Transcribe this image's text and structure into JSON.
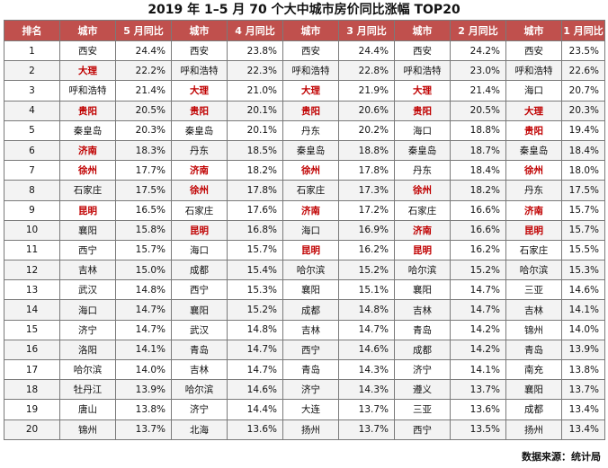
{
  "title": "2019 年 1–5 月 70 个大中城市房价同比涨幅 TOP20",
  "headers": [
    "排名",
    "城市",
    "5 月同比",
    "城市",
    "4 月同比",
    "城市",
    "3 月同比",
    "城市",
    "2 月同比",
    "城市",
    "1 月同比"
  ],
  "highlight_color": "#c00000",
  "header_color": "#c0504d",
  "rows": [
    {
      "rank": "1",
      "m5": {
        "city": "西安",
        "pct": "24.4%",
        "hl": false
      },
      "m4": {
        "city": "西安",
        "pct": "23.8%",
        "hl": false
      },
      "m3": {
        "city": "西安",
        "pct": "24.4%",
        "hl": false
      },
      "m2": {
        "city": "西安",
        "pct": "24.2%",
        "hl": false
      },
      "m1": {
        "city": "西安",
        "pct": "23.5%",
        "hl": false
      }
    },
    {
      "rank": "2",
      "m5": {
        "city": "大理",
        "pct": "22.2%",
        "hl": true
      },
      "m4": {
        "city": "呼和浩特",
        "pct": "22.3%",
        "hl": false
      },
      "m3": {
        "city": "呼和浩特",
        "pct": "22.8%",
        "hl": false
      },
      "m2": {
        "city": "呼和浩特",
        "pct": "23.0%",
        "hl": false
      },
      "m1": {
        "city": "呼和浩特",
        "pct": "22.6%",
        "hl": false
      }
    },
    {
      "rank": "3",
      "m5": {
        "city": "呼和浩特",
        "pct": "21.4%",
        "hl": false
      },
      "m4": {
        "city": "大理",
        "pct": "21.0%",
        "hl": true
      },
      "m3": {
        "city": "大理",
        "pct": "21.9%",
        "hl": true
      },
      "m2": {
        "city": "大理",
        "pct": "21.4%",
        "hl": true
      },
      "m1": {
        "city": "海口",
        "pct": "20.7%",
        "hl": false
      }
    },
    {
      "rank": "4",
      "m5": {
        "city": "贵阳",
        "pct": "20.5%",
        "hl": true
      },
      "m4": {
        "city": "贵阳",
        "pct": "20.1%",
        "hl": true
      },
      "m3": {
        "city": "贵阳",
        "pct": "20.6%",
        "hl": true
      },
      "m2": {
        "city": "贵阳",
        "pct": "20.5%",
        "hl": true
      },
      "m1": {
        "city": "大理",
        "pct": "20.3%",
        "hl": true
      }
    },
    {
      "rank": "5",
      "m5": {
        "city": "秦皇岛",
        "pct": "20.3%",
        "hl": false
      },
      "m4": {
        "city": "秦皇岛",
        "pct": "20.1%",
        "hl": false
      },
      "m3": {
        "city": "丹东",
        "pct": "20.2%",
        "hl": false
      },
      "m2": {
        "city": "海口",
        "pct": "18.8%",
        "hl": false
      },
      "m1": {
        "city": "贵阳",
        "pct": "19.4%",
        "hl": true
      }
    },
    {
      "rank": "6",
      "m5": {
        "city": "济南",
        "pct": "18.3%",
        "hl": true
      },
      "m4": {
        "city": "丹东",
        "pct": "18.5%",
        "hl": false
      },
      "m3": {
        "city": "秦皇岛",
        "pct": "18.8%",
        "hl": false
      },
      "m2": {
        "city": "秦皇岛",
        "pct": "18.7%",
        "hl": false
      },
      "m1": {
        "city": "秦皇岛",
        "pct": "18.4%",
        "hl": false
      }
    },
    {
      "rank": "7",
      "m5": {
        "city": "徐州",
        "pct": "17.7%",
        "hl": true
      },
      "m4": {
        "city": "济南",
        "pct": "18.2%",
        "hl": true
      },
      "m3": {
        "city": "徐州",
        "pct": "17.8%",
        "hl": true
      },
      "m2": {
        "city": "丹东",
        "pct": "18.4%",
        "hl": false
      },
      "m1": {
        "city": "徐州",
        "pct": "18.0%",
        "hl": true
      }
    },
    {
      "rank": "8",
      "m5": {
        "city": "石家庄",
        "pct": "17.5%",
        "hl": false
      },
      "m4": {
        "city": "徐州",
        "pct": "17.8%",
        "hl": true
      },
      "m3": {
        "city": "石家庄",
        "pct": "17.3%",
        "hl": false
      },
      "m2": {
        "city": "徐州",
        "pct": "18.2%",
        "hl": true
      },
      "m1": {
        "city": "丹东",
        "pct": "17.5%",
        "hl": false
      }
    },
    {
      "rank": "9",
      "m5": {
        "city": "昆明",
        "pct": "16.5%",
        "hl": true
      },
      "m4": {
        "city": "石家庄",
        "pct": "17.6%",
        "hl": false
      },
      "m3": {
        "city": "济南",
        "pct": "17.2%",
        "hl": true
      },
      "m2": {
        "city": "石家庄",
        "pct": "16.6%",
        "hl": false
      },
      "m1": {
        "city": "济南",
        "pct": "15.7%",
        "hl": true
      }
    },
    {
      "rank": "10",
      "m5": {
        "city": "襄阳",
        "pct": "15.8%",
        "hl": false
      },
      "m4": {
        "city": "昆明",
        "pct": "16.8%",
        "hl": true
      },
      "m3": {
        "city": "海口",
        "pct": "16.9%",
        "hl": false
      },
      "m2": {
        "city": "济南",
        "pct": "16.6%",
        "hl": true
      },
      "m1": {
        "city": "昆明",
        "pct": "15.7%",
        "hl": true
      }
    },
    {
      "rank": "11",
      "m5": {
        "city": "西宁",
        "pct": "15.7%",
        "hl": false
      },
      "m4": {
        "city": "海口",
        "pct": "15.7%",
        "hl": false
      },
      "m3": {
        "city": "昆明",
        "pct": "16.2%",
        "hl": true
      },
      "m2": {
        "city": "昆明",
        "pct": "16.2%",
        "hl": true
      },
      "m1": {
        "city": "石家庄",
        "pct": "15.5%",
        "hl": false
      }
    },
    {
      "rank": "12",
      "m5": {
        "city": "吉林",
        "pct": "15.0%",
        "hl": false
      },
      "m4": {
        "city": "成都",
        "pct": "15.4%",
        "hl": false
      },
      "m3": {
        "city": "哈尔滨",
        "pct": "15.2%",
        "hl": false
      },
      "m2": {
        "city": "哈尔滨",
        "pct": "15.2%",
        "hl": false
      },
      "m1": {
        "city": "哈尔滨",
        "pct": "15.3%",
        "hl": false
      }
    },
    {
      "rank": "13",
      "m5": {
        "city": "武汉",
        "pct": "14.8%",
        "hl": false
      },
      "m4": {
        "city": "西宁",
        "pct": "15.3%",
        "hl": false
      },
      "m3": {
        "city": "襄阳",
        "pct": "15.1%",
        "hl": false
      },
      "m2": {
        "city": "襄阳",
        "pct": "14.7%",
        "hl": false
      },
      "m1": {
        "city": "三亚",
        "pct": "14.6%",
        "hl": false
      }
    },
    {
      "rank": "14",
      "m5": {
        "city": "海口",
        "pct": "14.7%",
        "hl": false
      },
      "m4": {
        "city": "襄阳",
        "pct": "15.2%",
        "hl": false
      },
      "m3": {
        "city": "成都",
        "pct": "14.8%",
        "hl": false
      },
      "m2": {
        "city": "吉林",
        "pct": "14.7%",
        "hl": false
      },
      "m1": {
        "city": "吉林",
        "pct": "14.1%",
        "hl": false
      }
    },
    {
      "rank": "15",
      "m5": {
        "city": "济宁",
        "pct": "14.7%",
        "hl": false
      },
      "m4": {
        "city": "武汉",
        "pct": "14.8%",
        "hl": false
      },
      "m3": {
        "city": "吉林",
        "pct": "14.7%",
        "hl": false
      },
      "m2": {
        "city": "青岛",
        "pct": "14.2%",
        "hl": false
      },
      "m1": {
        "city": "锦州",
        "pct": "14.0%",
        "hl": false
      }
    },
    {
      "rank": "16",
      "m5": {
        "city": "洛阳",
        "pct": "14.1%",
        "hl": false
      },
      "m4": {
        "city": "青岛",
        "pct": "14.7%",
        "hl": false
      },
      "m3": {
        "city": "西宁",
        "pct": "14.6%",
        "hl": false
      },
      "m2": {
        "city": "成都",
        "pct": "14.2%",
        "hl": false
      },
      "m1": {
        "city": "青岛",
        "pct": "13.9%",
        "hl": false
      }
    },
    {
      "rank": "17",
      "m5": {
        "city": "哈尔滨",
        "pct": "14.0%",
        "hl": false
      },
      "m4": {
        "city": "吉林",
        "pct": "14.7%",
        "hl": false
      },
      "m3": {
        "city": "青岛",
        "pct": "14.3%",
        "hl": false
      },
      "m2": {
        "city": "济宁",
        "pct": "14.1%",
        "hl": false
      },
      "m1": {
        "city": "南充",
        "pct": "13.8%",
        "hl": false
      }
    },
    {
      "rank": "18",
      "m5": {
        "city": "牡丹江",
        "pct": "13.9%",
        "hl": false
      },
      "m4": {
        "city": "哈尔滨",
        "pct": "14.6%",
        "hl": false
      },
      "m3": {
        "city": "济宁",
        "pct": "14.3%",
        "hl": false
      },
      "m2": {
        "city": "遵义",
        "pct": "13.7%",
        "hl": false
      },
      "m1": {
        "city": "襄阳",
        "pct": "13.7%",
        "hl": false
      }
    },
    {
      "rank": "19",
      "m5": {
        "city": "唐山",
        "pct": "13.8%",
        "hl": false
      },
      "m4": {
        "city": "济宁",
        "pct": "14.4%",
        "hl": false
      },
      "m3": {
        "city": "大连",
        "pct": "13.7%",
        "hl": false
      },
      "m2": {
        "city": "三亚",
        "pct": "13.6%",
        "hl": false
      },
      "m1": {
        "city": "成都",
        "pct": "13.4%",
        "hl": false
      }
    },
    {
      "rank": "20",
      "m5": {
        "city": "锦州",
        "pct": "13.7%",
        "hl": false
      },
      "m4": {
        "city": "北海",
        "pct": "13.6%",
        "hl": false
      },
      "m3": {
        "city": "扬州",
        "pct": "13.7%",
        "hl": false
      },
      "m2": {
        "city": "西宁",
        "pct": "13.5%",
        "hl": false
      },
      "m1": {
        "city": "扬州",
        "pct": "13.4%",
        "hl": false
      }
    }
  ],
  "source": "数据来源：统计局"
}
